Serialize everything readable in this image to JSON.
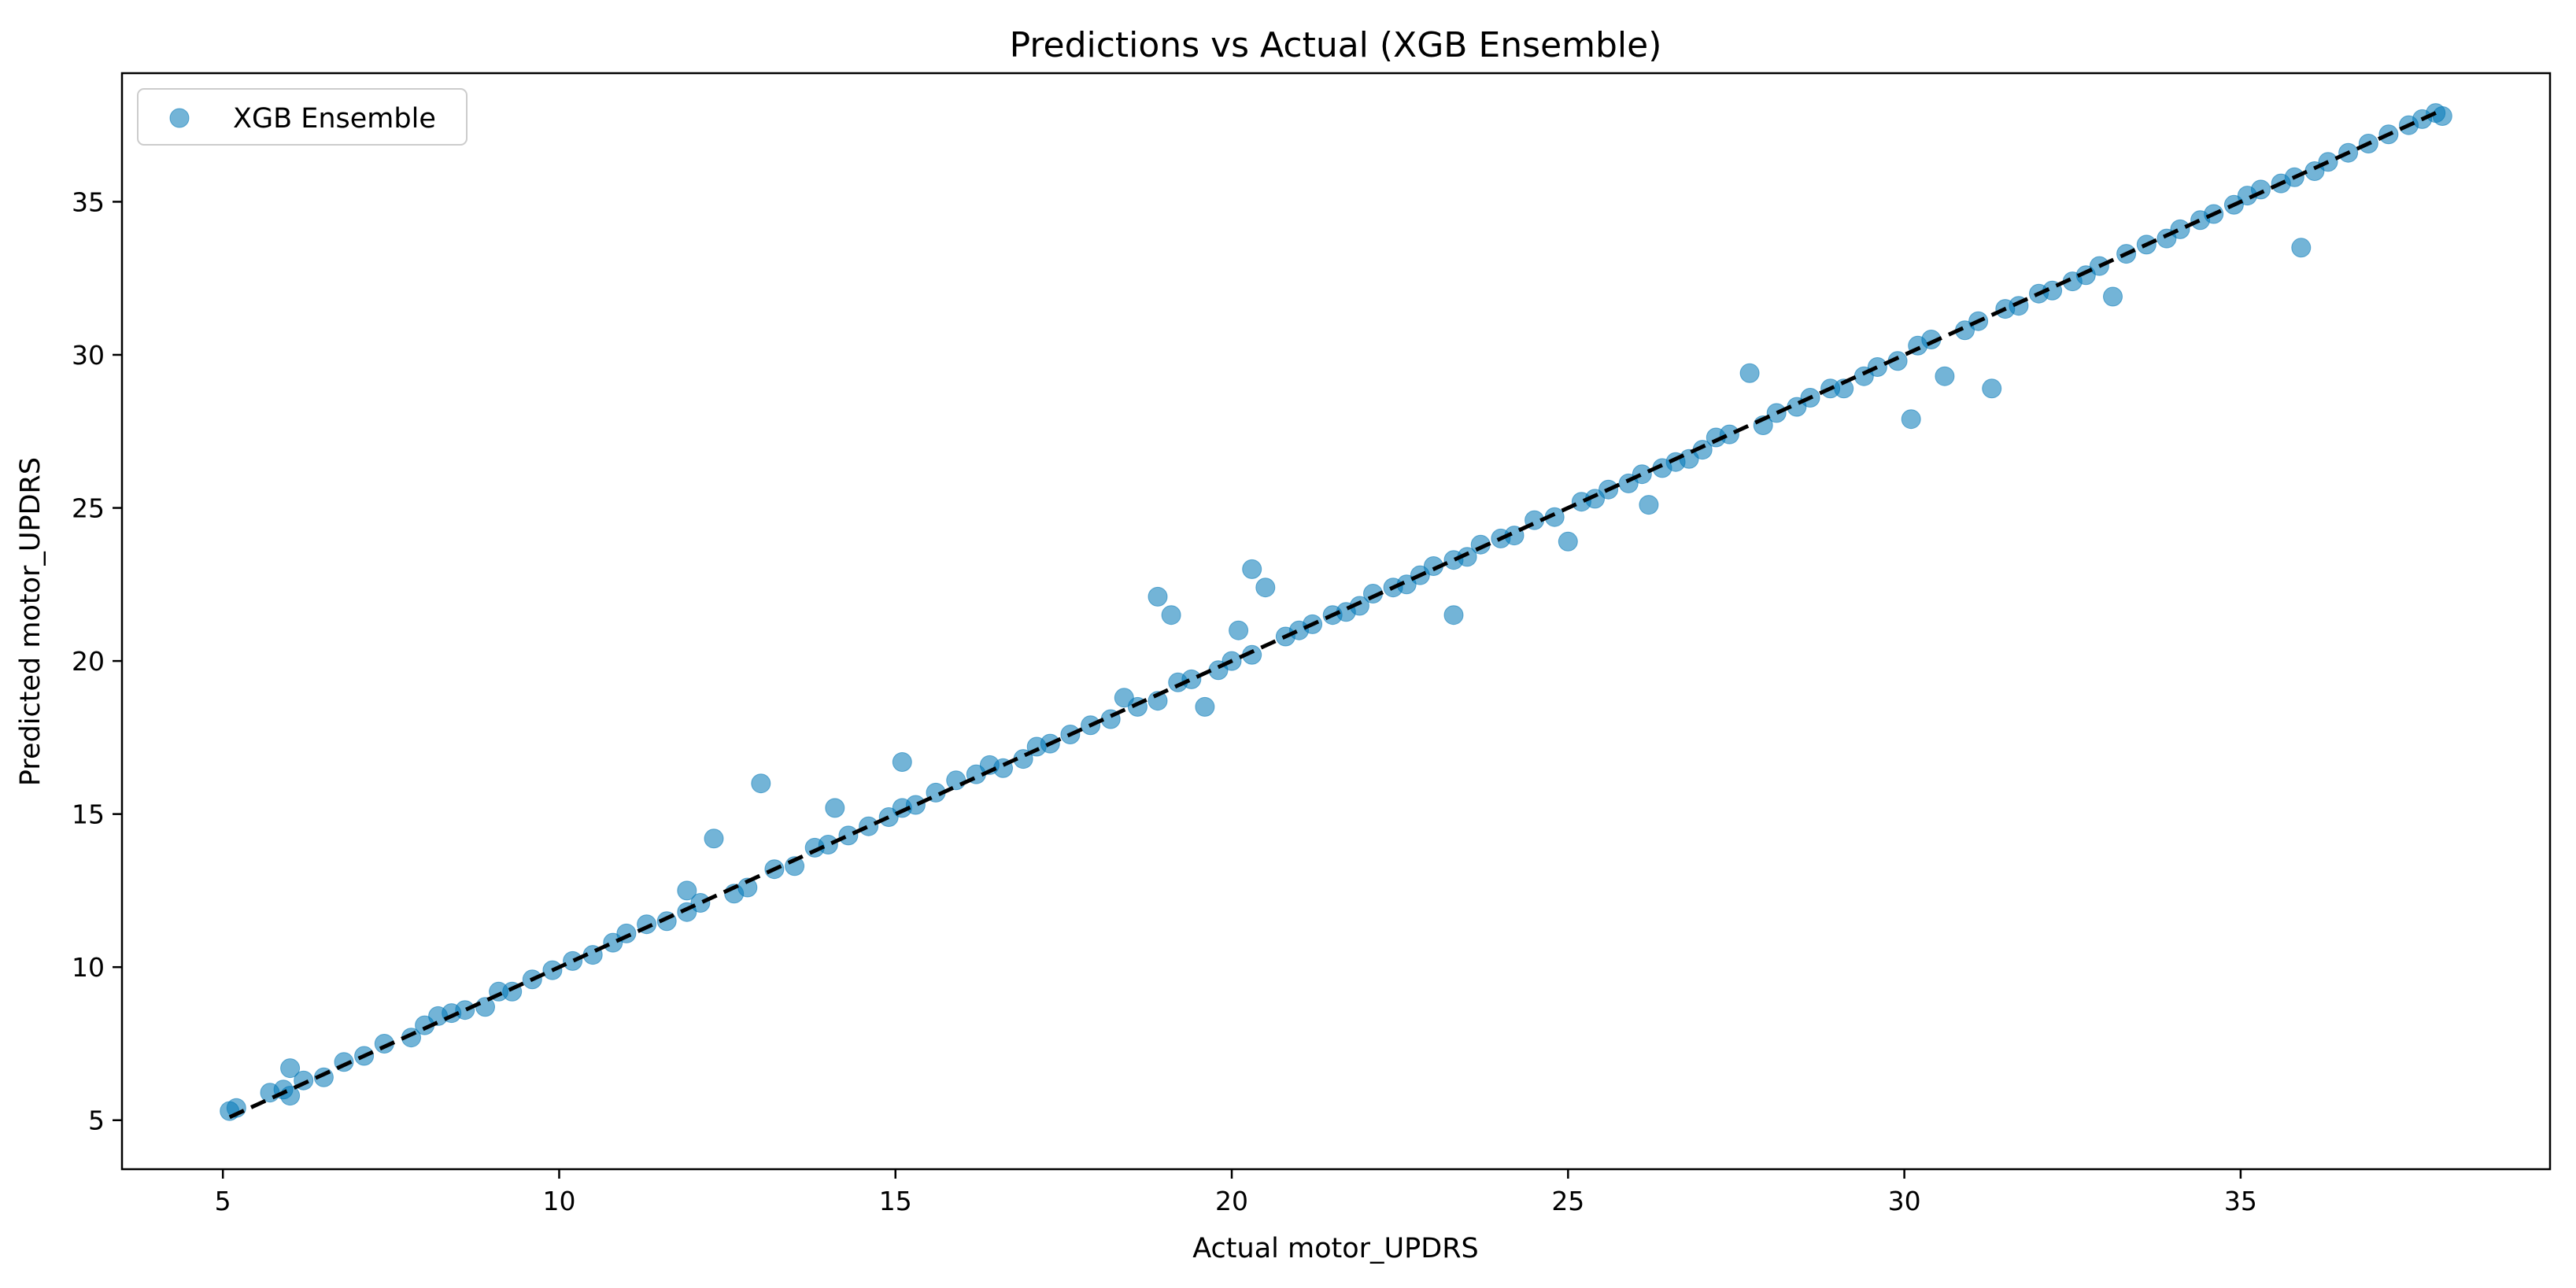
{
  "chart_data": {
    "type": "scatter",
    "title": "Predictions vs Actual (XGB Ensemble)",
    "xlabel": "Actual motor_UPDRS",
    "ylabel": "Predicted motor_UPDRS",
    "xlim": [
      3.5,
      39.6
    ],
    "ylim": [
      3.4,
      39.2
    ],
    "xticks": [
      5,
      10,
      15,
      20,
      25,
      30,
      35
    ],
    "yticks": [
      5,
      10,
      15,
      20,
      25,
      30,
      35
    ],
    "xtick_labels": [
      "5",
      "10",
      "15",
      "20",
      "25",
      "30",
      "35"
    ],
    "ytick_labels": [
      "5",
      "10",
      "15",
      "20",
      "25",
      "30",
      "35"
    ],
    "grid": false,
    "legend": {
      "placement": "top-left",
      "entries": [
        "XGB Ensemble"
      ]
    },
    "series": [
      {
        "name": "XGB Ensemble",
        "marker": "circle",
        "color": "#0077b6",
        "alpha": 0.55,
        "x": [
          5.1,
          5.2,
          5.7,
          5.9,
          6.0,
          6.0,
          6.2,
          6.5,
          6.8,
          7.1,
          7.4,
          7.8,
          8.0,
          8.2,
          8.4,
          8.6,
          8.9,
          9.1,
          9.3,
          9.6,
          9.9,
          10.2,
          10.5,
          10.8,
          11.0,
          11.3,
          11.6,
          11.9,
          11.9,
          12.1,
          12.3,
          12.6,
          12.8,
          13.0,
          13.2,
          13.5,
          13.8,
          14.0,
          14.1,
          14.3,
          14.6,
          14.9,
          15.1,
          15.1,
          15.3,
          15.6,
          15.9,
          16.2,
          16.4,
          16.6,
          16.9,
          17.1,
          17.3,
          17.6,
          17.9,
          18.2,
          18.4,
          18.6,
          18.9,
          18.9,
          19.1,
          19.2,
          19.4,
          19.6,
          19.8,
          20.0,
          20.1,
          20.3,
          20.3,
          20.5,
          20.8,
          21.0,
          21.2,
          21.5,
          21.7,
          21.9,
          22.1,
          22.4,
          22.6,
          22.8,
          23.0,
          23.3,
          23.3,
          23.5,
          23.7,
          24.0,
          24.2,
          24.5,
          24.8,
          25.0,
          25.2,
          25.4,
          25.6,
          25.9,
          26.1,
          26.2,
          26.4,
          26.6,
          26.8,
          27.0,
          27.2,
          27.4,
          27.7,
          27.9,
          28.1,
          28.4,
          28.6,
          28.9,
          29.1,
          29.4,
          29.6,
          29.9,
          30.1,
          30.2,
          30.4,
          30.6,
          30.9,
          31.1,
          31.3,
          31.5,
          31.7,
          32.0,
          32.2,
          32.5,
          32.7,
          32.9,
          33.1,
          33.3,
          33.6,
          33.9,
          34.1,
          34.4,
          34.6,
          34.9,
          35.1,
          35.3,
          35.6,
          35.8,
          35.9,
          36.1,
          36.3,
          36.6,
          36.9,
          37.2,
          37.5,
          37.7,
          37.9,
          38.0
        ],
        "y": [
          5.3,
          5.4,
          5.9,
          6.0,
          6.7,
          5.8,
          6.3,
          6.4,
          6.9,
          7.1,
          7.5,
          7.7,
          8.1,
          8.4,
          8.5,
          8.6,
          8.7,
          9.2,
          9.2,
          9.6,
          9.9,
          10.2,
          10.4,
          10.8,
          11.1,
          11.4,
          11.5,
          12.5,
          11.8,
          12.1,
          14.2,
          12.4,
          12.6,
          16.0,
          13.2,
          13.3,
          13.9,
          14.0,
          15.2,
          14.3,
          14.6,
          14.9,
          16.7,
          15.2,
          15.3,
          15.7,
          16.1,
          16.3,
          16.6,
          16.5,
          16.8,
          17.2,
          17.3,
          17.6,
          17.9,
          18.1,
          18.8,
          18.5,
          22.1,
          18.7,
          21.5,
          19.3,
          19.4,
          18.5,
          19.7,
          20.0,
          21.0,
          23.0,
          20.2,
          22.4,
          20.8,
          21.0,
          21.2,
          21.5,
          21.6,
          21.8,
          22.2,
          22.4,
          22.5,
          22.8,
          23.1,
          21.5,
          23.3,
          23.4,
          23.8,
          24.0,
          24.1,
          24.6,
          24.7,
          23.9,
          25.2,
          25.3,
          25.6,
          25.8,
          26.1,
          25.1,
          26.3,
          26.5,
          26.6,
          26.9,
          27.3,
          27.4,
          29.4,
          27.7,
          28.1,
          28.3,
          28.6,
          28.9,
          28.9,
          29.3,
          29.6,
          29.8,
          27.9,
          30.3,
          30.5,
          29.3,
          30.8,
          31.1,
          28.9,
          31.5,
          31.6,
          32.0,
          32.1,
          32.4,
          32.6,
          32.9,
          31.9,
          33.3,
          33.6,
          33.8,
          34.1,
          34.4,
          34.6,
          34.9,
          35.2,
          35.4,
          35.6,
          35.8,
          33.5,
          36.0,
          36.3,
          36.6,
          36.9,
          37.2,
          37.5,
          37.7,
          37.9,
          37.8
        ]
      },
      {
        "name": "",
        "marker": "dashed-line",
        "color": "#000000",
        "x": [
          5.1,
          38.0
        ],
        "y": [
          5.1,
          38.0
        ]
      }
    ]
  }
}
